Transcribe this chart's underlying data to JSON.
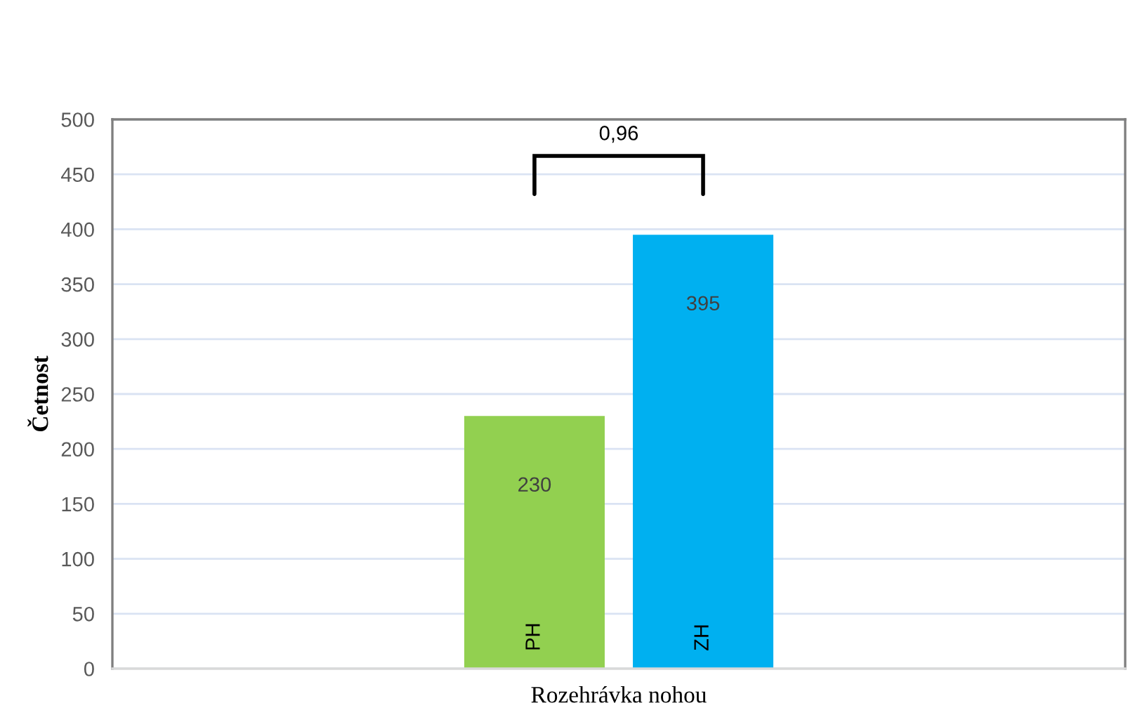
{
  "chart_data": {
    "type": "bar",
    "categories": [
      "Rozehrávka nohou"
    ],
    "series": [
      {
        "name": "PH",
        "color": "#92d050",
        "values": [
          230
        ]
      },
      {
        "name": "ZH",
        "color": "#00b0f0",
        "values": [
          395
        ]
      }
    ],
    "ylabel": "Četnost",
    "ylim": [
      0,
      500
    ],
    "yticks": [
      0,
      50,
      100,
      150,
      200,
      250,
      300,
      350,
      400,
      450,
      500
    ],
    "grid": "y",
    "data_labels": true,
    "annotations": [
      "0,96"
    ]
  }
}
